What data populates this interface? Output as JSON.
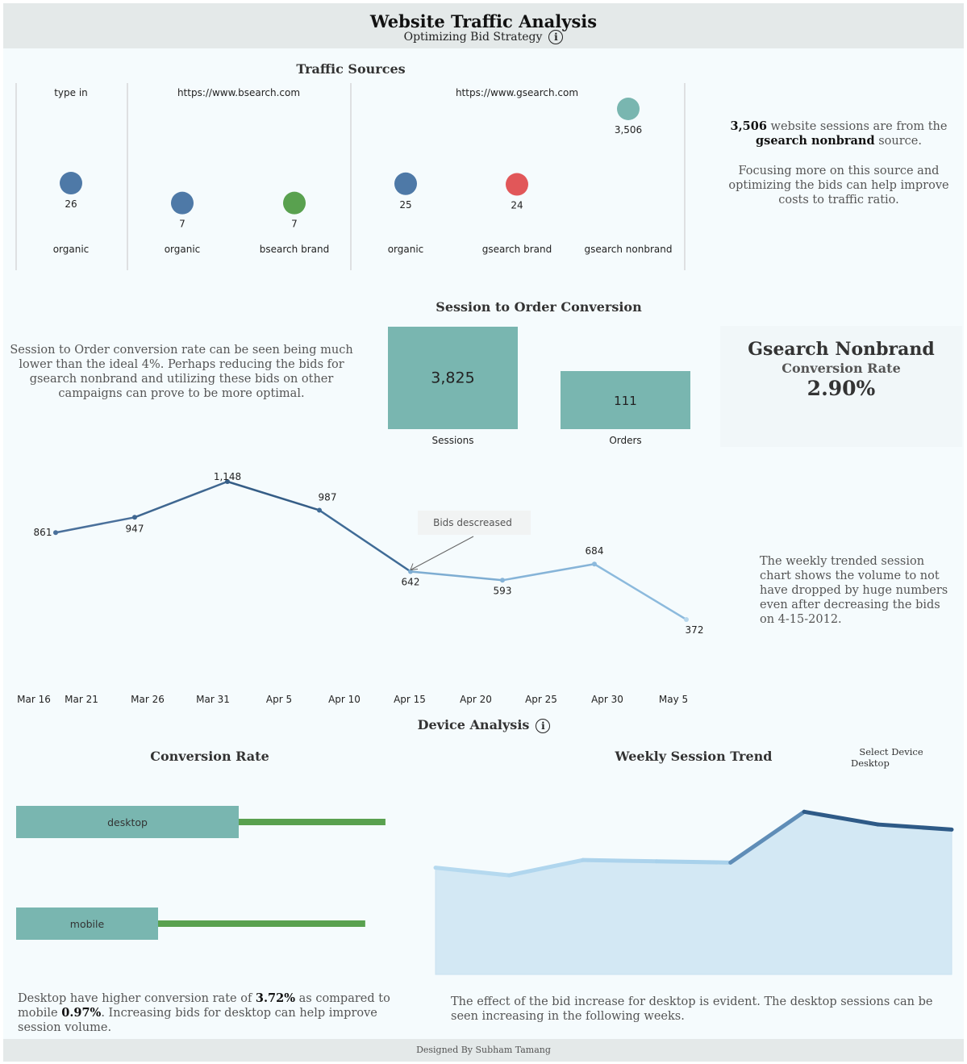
{
  "header": {
    "title": "Website Traffic Analysis",
    "subtitle": "Optimizing Bid Strategy"
  },
  "traffic_sources": {
    "title": "Traffic Sources",
    "insight_bold_value": "3,506",
    "insight_text_1": "website sessions are from the",
    "insight_bold_source": "gsearch nonbrand",
    "insight_text_2": "source.",
    "insight_paragraph_2": "Focusing more on this source and optimizing the bids can help improve costs to traffic ratio."
  },
  "conversion": {
    "title": "Session to Order Conversion",
    "narrative": "Session to Order conversion rate can be seen being much lower than the ideal 4%. Perhaps reducing the bids for gsearch nonbrand and utilizing these bids on other campaigns can prove to be more optimal.",
    "kpi_title": "Gsearch Nonbrand",
    "kpi_subtitle": "Conversion Rate",
    "kpi_value": "2.90%"
  },
  "weekly_trend": {
    "annotation": "Bids descreased",
    "narrative": "The weekly trended session chart shows the volume to not have dropped by huge numbers even after decreasing the bids on 4-15-2012."
  },
  "device_analysis": {
    "title": "Device Analysis",
    "conv_title": "Conversion Rate",
    "trend_title": "Weekly Session Trend",
    "select_label": "Select Device",
    "select_value": "Desktop",
    "conv_narrative_1": "Desktop have higher conversion rate of",
    "conv_value_desktop": "3.72%",
    "conv_narrative_2": "as compared to mobile",
    "conv_value_mobile": "0.97%",
    "conv_narrative_3": ". Increasing bids for desktop can help improve session volume.",
    "trend_narrative": "The effect of the bid increase for desktop is evident. The desktop sessions can be seen increasing in the following weeks."
  },
  "footer": {
    "text": "Designed By Subham Tamang"
  },
  "colors": {
    "teal": "#79b6b0",
    "blue": "#4e79a7",
    "green": "#59a14f",
    "red": "#e15759",
    "dark_blue": "#2e5a87",
    "light_blue": "#a9d1ea",
    "area_fill": "#d3e8f4"
  },
  "chart_data": [
    {
      "id": "traffic_sources",
      "type": "scatter",
      "title": "Traffic Sources",
      "panels": [
        {
          "source": "type in",
          "points": [
            {
              "campaign": "organic",
              "value": 26,
              "color": "#4e79a7"
            }
          ]
        },
        {
          "source": "https://www.bsearch.com",
          "points": [
            {
              "campaign": "organic",
              "value": 7,
              "color": "#4e79a7"
            },
            {
              "campaign": "bsearch brand",
              "value": 7,
              "color": "#59a14f"
            }
          ]
        },
        {
          "source": "https://www.gsearch.com",
          "points": [
            {
              "campaign": "organic",
              "value": 25,
              "color": "#4e79a7"
            },
            {
              "campaign": "gsearch brand",
              "value": 24,
              "color": "#e15759"
            },
            {
              "campaign": "gsearch nonbrand",
              "value": 3506,
              "color": "#79b6b0"
            }
          ]
        }
      ]
    },
    {
      "id": "session_order",
      "type": "bar",
      "title": "Session to Order Conversion",
      "categories": [
        "Sessions",
        "Orders"
      ],
      "values": [
        3825,
        111
      ],
      "value_labels": [
        "3,825",
        "111"
      ]
    },
    {
      "id": "weekly_sessions",
      "type": "line",
      "x": [
        "Mar 19",
        "Mar 26",
        "Apr 2",
        "Apr 9",
        "Apr 16",
        "Apr 23",
        "Apr 30",
        "May 7"
      ],
      "values": [
        861,
        947,
        1148,
        987,
        642,
        593,
        684,
        372
      ],
      "value_labels": [
        "861",
        "947",
        "1,148",
        "987",
        "642",
        "593",
        "684",
        "372"
      ],
      "x_ticks": [
        "Mar 16",
        "Mar 21",
        "Mar 26",
        "Mar 31",
        "Apr 5",
        "Apr 10",
        "Apr 15",
        "Apr 20",
        "Apr 25",
        "Apr 30",
        "May 5"
      ],
      "annotation": "Bids descreased",
      "annotation_index": 4
    },
    {
      "id": "device_conversion",
      "type": "bar",
      "title": "Conversion Rate",
      "categories": [
        "desktop",
        "mobile"
      ],
      "values": [
        3.72,
        0.97
      ],
      "reference_values": [
        4.8,
        4.6
      ]
    },
    {
      "id": "device_weekly",
      "type": "area",
      "title": "Weekly Session Trend",
      "series": [
        {
          "name": "Desktop",
          "values": [
            420,
            390,
            450,
            445,
            440,
            640,
            590,
            570
          ]
        }
      ]
    }
  ]
}
